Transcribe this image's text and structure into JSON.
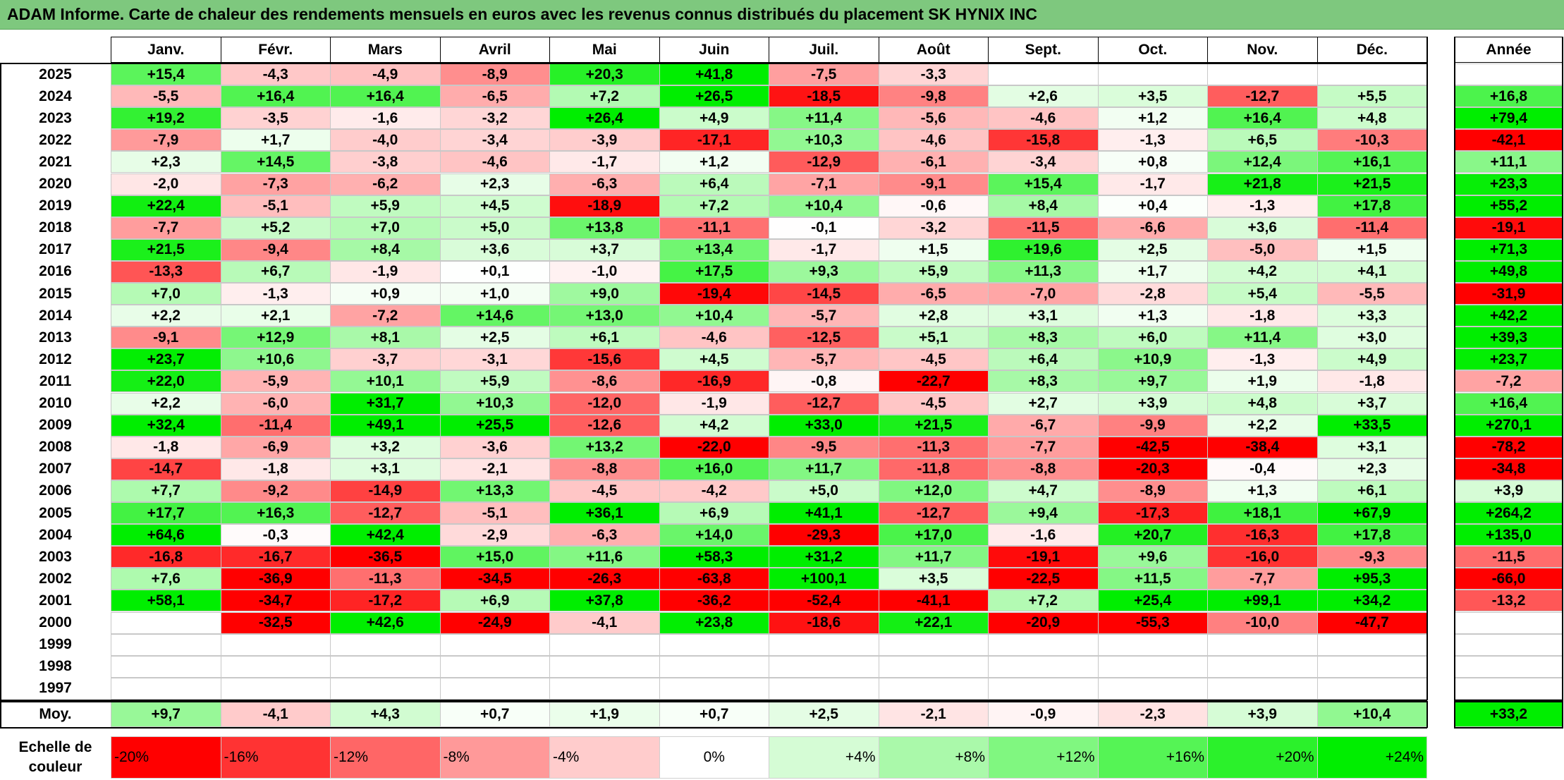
{
  "title": "ADAM Informe. Carte de chaleur des rendements mensuels en euros avec les revenus connus distribués du placement SK HYNIX INC",
  "chart_data": {
    "type": "heatmap",
    "columns": [
      "Janv.",
      "Févr.",
      "Mars",
      "Avril",
      "Mai",
      "Juin",
      "Juil.",
      "Août",
      "Sept.",
      "Oct.",
      "Nov.",
      "Déc."
    ],
    "year_header": "Année",
    "rows": [
      {
        "year": "2025",
        "values": [
          "+15,4",
          "-4,3",
          "-4,9",
          "-8,9",
          "+20,3",
          "+41,8",
          "-7,5",
          "-3,3",
          "",
          "",
          "",
          ""
        ],
        "annual": ""
      },
      {
        "year": "2024",
        "values": [
          "-5,5",
          "+16,4",
          "+16,4",
          "-6,5",
          "+7,2",
          "+26,5",
          "-18,5",
          "-9,8",
          "+2,6",
          "+3,5",
          "-12,7",
          "+5,5"
        ],
        "annual": "+16,8"
      },
      {
        "year": "2023",
        "values": [
          "+19,2",
          "-3,5",
          "-1,6",
          "-3,2",
          "+26,4",
          "+4,9",
          "+11,4",
          "-5,6",
          "-4,6",
          "+1,2",
          "+16,4",
          "+4,8"
        ],
        "annual": "+79,4"
      },
      {
        "year": "2022",
        "values": [
          "-7,9",
          "+1,7",
          "-4,0",
          "-3,4",
          "-3,9",
          "-17,1",
          "+10,3",
          "-4,6",
          "-15,8",
          "-1,3",
          "+6,5",
          "-10,3"
        ],
        "annual": "-42,1"
      },
      {
        "year": "2021",
        "values": [
          "+2,3",
          "+14,5",
          "-3,8",
          "-4,6",
          "-1,7",
          "+1,2",
          "-12,9",
          "-6,1",
          "-3,4",
          "+0,8",
          "+12,4",
          "+16,1"
        ],
        "annual": "+11,1"
      },
      {
        "year": "2020",
        "values": [
          "-2,0",
          "-7,3",
          "-6,2",
          "+2,3",
          "-6,3",
          "+6,4",
          "-7,1",
          "-9,1",
          "+15,4",
          "-1,7",
          "+21,8",
          "+21,5"
        ],
        "annual": "+23,3"
      },
      {
        "year": "2019",
        "values": [
          "+22,4",
          "-5,1",
          "+5,9",
          "+4,5",
          "-18,9",
          "+7,2",
          "+10,4",
          "-0,6",
          "+8,4",
          "+0,4",
          "-1,3",
          "+17,8"
        ],
        "annual": "+55,2"
      },
      {
        "year": "2018",
        "values": [
          "-7,7",
          "+5,2",
          "+7,0",
          "+5,0",
          "+13,8",
          "-11,1",
          "-0,1",
          "-3,2",
          "-11,5",
          "-6,6",
          "+3,6",
          "-11,4"
        ],
        "annual": "-19,1"
      },
      {
        "year": "2017",
        "values": [
          "+21,5",
          "-9,4",
          "+8,4",
          "+3,6",
          "+3,7",
          "+13,4",
          "-1,7",
          "+1,5",
          "+19,6",
          "+2,5",
          "-5,0",
          "+1,5"
        ],
        "annual": "+71,3"
      },
      {
        "year": "2016",
        "values": [
          "-13,3",
          "+6,7",
          "-1,9",
          "+0,1",
          "-1,0",
          "+17,5",
          "+9,3",
          "+5,9",
          "+11,3",
          "+1,7",
          "+4,2",
          "+4,1"
        ],
        "annual": "+49,8"
      },
      {
        "year": "2015",
        "values": [
          "+7,0",
          "-1,3",
          "+0,9",
          "+1,0",
          "+9,0",
          "-19,4",
          "-14,5",
          "-6,5",
          "-7,0",
          "-2,8",
          "+5,4",
          "-5,5"
        ],
        "annual": "-31,9"
      },
      {
        "year": "2014",
        "values": [
          "+2,2",
          "+2,1",
          "-7,2",
          "+14,6",
          "+13,0",
          "+10,4",
          "-5,7",
          "+2,8",
          "+3,1",
          "+1,3",
          "-1,8",
          "+3,3"
        ],
        "annual": "+42,2"
      },
      {
        "year": "2013",
        "values": [
          "-9,1",
          "+12,9",
          "+8,1",
          "+2,5",
          "+6,1",
          "-4,6",
          "-12,5",
          "+5,1",
          "+8,3",
          "+6,0",
          "+11,4",
          "+3,0"
        ],
        "annual": "+39,3"
      },
      {
        "year": "2012",
        "values": [
          "+23,7",
          "+10,6",
          "-3,7",
          "-3,1",
          "-15,6",
          "+4,5",
          "-5,7",
          "-4,5",
          "+6,4",
          "+10,9",
          "-1,3",
          "+4,9"
        ],
        "annual": "+23,7"
      },
      {
        "year": "2011",
        "values": [
          "+22,0",
          "-5,9",
          "+10,1",
          "+5,9",
          "-8,6",
          "-16,9",
          "-0,8",
          "-22,7",
          "+8,3",
          "+9,7",
          "+1,9",
          "-1,8"
        ],
        "annual": "-7,2"
      },
      {
        "year": "2010",
        "values": [
          "+2,2",
          "-6,0",
          "+31,7",
          "+10,3",
          "-12,0",
          "-1,9",
          "-12,7",
          "-4,5",
          "+2,7",
          "+3,9",
          "+4,8",
          "+3,7"
        ],
        "annual": "+16,4"
      },
      {
        "year": "2009",
        "values": [
          "+32,4",
          "-11,4",
          "+49,1",
          "+25,5",
          "-12,6",
          "+4,2",
          "+33,0",
          "+21,5",
          "-6,7",
          "-9,9",
          "+2,2",
          "+33,5"
        ],
        "annual": "+270,1"
      },
      {
        "year": "2008",
        "values": [
          "-1,8",
          "-6,9",
          "+3,2",
          "-3,6",
          "+13,2",
          "-22,0",
          "-9,5",
          "-11,3",
          "-7,7",
          "-42,5",
          "-38,4",
          "+3,1"
        ],
        "annual": "-78,2"
      },
      {
        "year": "2007",
        "values": [
          "-14,7",
          "-1,8",
          "+3,1",
          "-2,1",
          "-8,8",
          "+16,0",
          "+11,7",
          "-11,8",
          "-8,8",
          "-20,3",
          "-0,4",
          "+2,3"
        ],
        "annual": "-34,8"
      },
      {
        "year": "2006",
        "values": [
          "+7,7",
          "-9,2",
          "-14,9",
          "+13,3",
          "-4,5",
          "-4,2",
          "+5,0",
          "+12,0",
          "+4,7",
          "-8,9",
          "+1,3",
          "+6,1"
        ],
        "annual": "+3,9"
      },
      {
        "year": "2005",
        "values": [
          "+17,7",
          "+16,3",
          "-12,7",
          "-5,1",
          "+36,1",
          "+6,9",
          "+41,1",
          "-12,7",
          "+9,4",
          "-17,3",
          "+18,1",
          "+67,9"
        ],
        "annual": "+264,2"
      },
      {
        "year": "2004",
        "values": [
          "+64,6",
          "-0,3",
          "+42,4",
          "-2,9",
          "-6,3",
          "+14,0",
          "-29,3",
          "+17,0",
          "-1,6",
          "+20,7",
          "-16,3",
          "+17,8"
        ],
        "annual": "+135,0"
      },
      {
        "year": "2003",
        "values": [
          "-16,8",
          "-16,7",
          "-36,5",
          "+15,0",
          "+11,6",
          "+58,3",
          "+31,2",
          "+11,7",
          "-19,1",
          "+9,6",
          "-16,0",
          "-9,3"
        ],
        "annual": "-11,5"
      },
      {
        "year": "2002",
        "values": [
          "+7,6",
          "-36,9",
          "-11,3",
          "-34,5",
          "-26,3",
          "-63,8",
          "+100,1",
          "+3,5",
          "-22,5",
          "+11,5",
          "-7,7",
          "+95,3"
        ],
        "annual": "-66,0"
      },
      {
        "year": "2001",
        "values": [
          "+58,1",
          "-34,7",
          "-17,2",
          "+6,9",
          "+37,8",
          "-36,2",
          "-52,4",
          "-41,1",
          "+7,2",
          "+25,4",
          "+99,1",
          "+34,2"
        ],
        "annual": "-13,2"
      },
      {
        "year": "2000",
        "values": [
          "",
          "-32,5",
          "+42,6",
          "-24,9",
          "-4,1",
          "+23,8",
          "-18,6",
          "+22,1",
          "-20,9",
          "-55,3",
          "-10,0",
          "-47,7"
        ],
        "annual": ""
      },
      {
        "year": "1999",
        "values": [
          "",
          "",
          "",
          "",
          "",
          "",
          "",
          "",
          "",
          "",
          "",
          ""
        ],
        "annual": ""
      },
      {
        "year": "1998",
        "values": [
          "",
          "",
          "",
          "",
          "",
          "",
          "",
          "",
          "",
          "",
          "",
          ""
        ],
        "annual": ""
      },
      {
        "year": "1997",
        "values": [
          "",
          "",
          "",
          "",
          "",
          "",
          "",
          "",
          "",
          "",
          "",
          ""
        ],
        "annual": ""
      }
    ],
    "average": {
      "label": "Moy.",
      "values": [
        "+9,7",
        "-4,1",
        "+4,3",
        "+0,7",
        "+1,9",
        "+0,7",
        "+2,5",
        "-2,1",
        "-0,9",
        "-2,3",
        "+3,9",
        "+10,4"
      ],
      "annual": "+33,2"
    },
    "legend": {
      "label_line1": "Echelle de",
      "label_line2": "couleur",
      "items": [
        "-20%",
        "-16%",
        "-12%",
        "-8%",
        "-4%",
        "0%",
        "+4%",
        "+8%",
        "+12%",
        "+16%",
        "+20%",
        "+24%"
      ]
    },
    "colors": {
      "negative": "#ff0000",
      "neutral": "#ffffff",
      "positive": "#00ee00",
      "title_bar": "#7ec87e"
    }
  }
}
